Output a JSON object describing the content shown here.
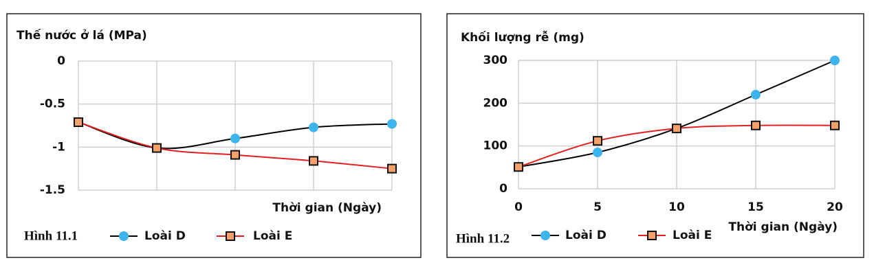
{
  "chart_data": [
    {
      "type": "line",
      "caption": "Hình 11.1",
      "title": "Thế nước ở lá (MPa)",
      "x_label": "Thời gian (Ngày)",
      "categories": [
        null,
        null,
        null,
        null,
        null
      ],
      "ylim": [
        -1.5,
        0
      ],
      "yticks": [
        0,
        -0.5,
        -1,
        -1.5
      ],
      "grid": true,
      "smooth": true,
      "series": [
        {
          "name": "Loài D",
          "color": "#3cb4ec",
          "line_color": "#000000",
          "marker": "circle",
          "values": [
            -0.71,
            -1.01,
            -0.9,
            -0.77,
            -0.73
          ]
        },
        {
          "name": "Loài E",
          "color": "#f4a06b",
          "line_color": "#e02020",
          "marker": "square",
          "values": [
            -0.71,
            -1.01,
            -1.09,
            -1.16,
            -1.25
          ]
        }
      ]
    },
    {
      "type": "line",
      "caption": "Hình 11.2",
      "title": "Khối lượng rễ (mg)",
      "x_label": "Thời gian (Ngày)",
      "x": [
        0,
        5,
        10,
        15,
        20
      ],
      "xlim": [
        0,
        20
      ],
      "xticks": [
        0,
        5,
        10,
        15,
        20
      ],
      "ylim": [
        0,
        300
      ],
      "yticks": [
        0,
        100,
        200,
        300
      ],
      "grid": true,
      "smooth": true,
      "series": [
        {
          "name": "Loài D",
          "color": "#3cb4ec",
          "line_color": "#000000",
          "marker": "circle",
          "values": [
            51,
            85,
            141,
            220,
            300
          ]
        },
        {
          "name": "Loài E",
          "color": "#f4a06b",
          "line_color": "#e02020",
          "marker": "square",
          "values": [
            51,
            112,
            141,
            148,
            148
          ]
        }
      ]
    }
  ]
}
